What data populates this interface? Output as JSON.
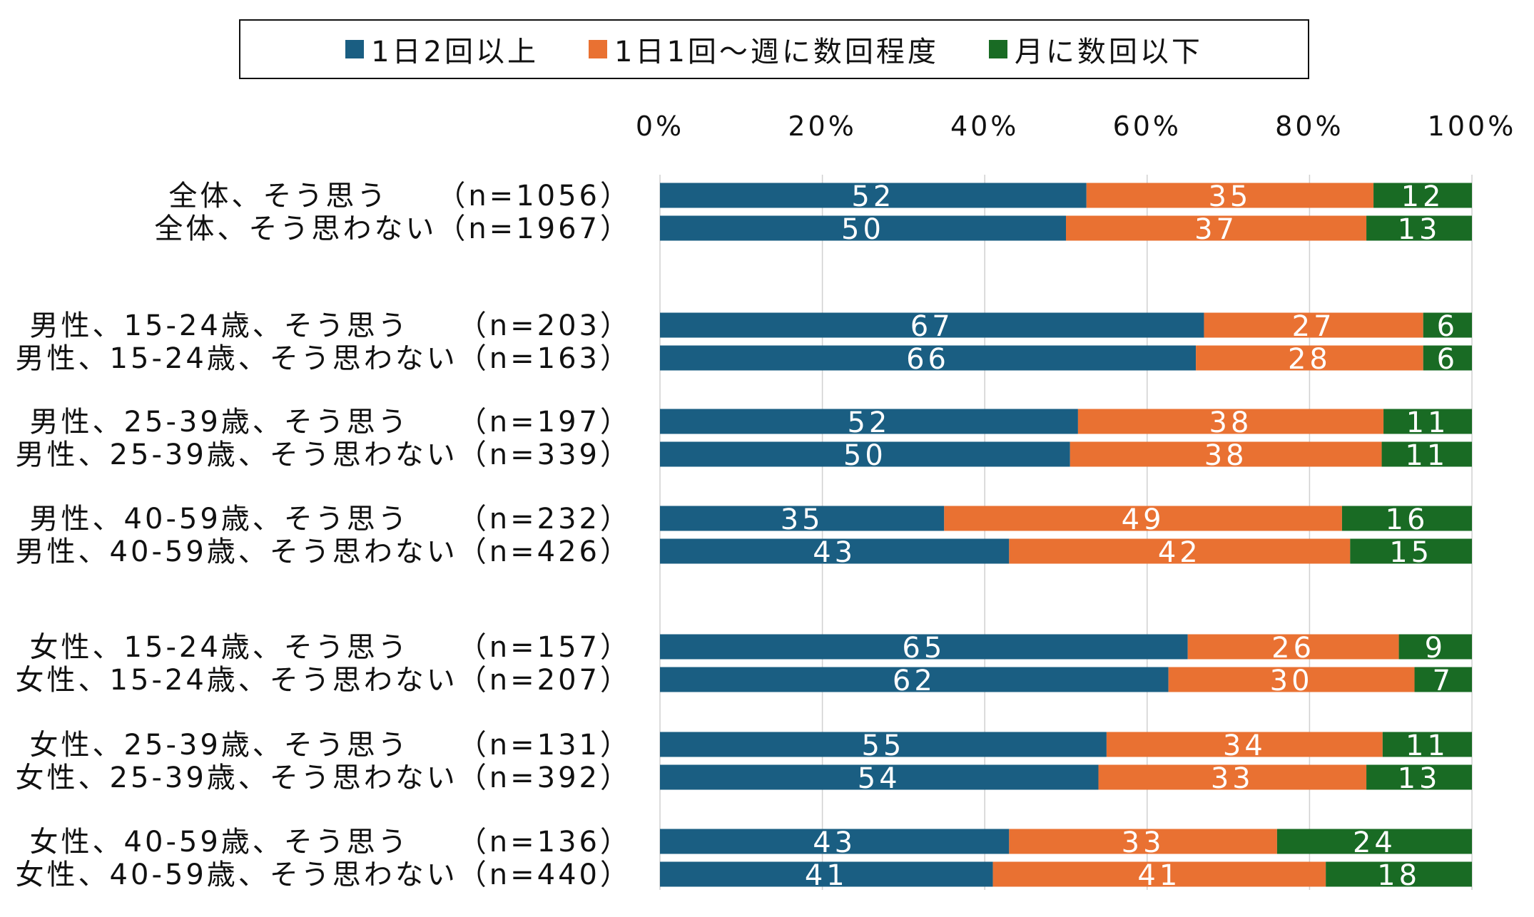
{
  "chart_data": {
    "type": "bar",
    "orientation": "horizontal",
    "stacked": true,
    "title": "",
    "xlabel": "",
    "ylabel": "",
    "xlim": [
      0,
      100
    ],
    "x_ticks": [
      "0%",
      "20%",
      "40%",
      "60%",
      "80%",
      "100%"
    ],
    "grid": true,
    "legend_position": "top",
    "categories": [
      "全体、そう思う　　（n=1056）",
      "全体、そう思わない（n=1967）",
      "男性、15-24歳、そう思う　　（n=203）",
      "男性、15-24歳、そう思わない（n=163）",
      "男性、25-39歳、そう思う　　（n=197）",
      "男性、25-39歳、そう思わない（n=339）",
      "男性、40-59歳、そう思う　　（n=232）",
      "男性、40-59歳、そう思わない（n=426）",
      "女性、15-24歳、そう思う　　（n=157）",
      "女性、15-24歳、そう思わない（n=207）",
      "女性、25-39歳、そう思う　　（n=131）",
      "女性、25-39歳、そう思わない（n=392）",
      "女性、40-59歳、そう思う　　（n=136）",
      "女性、40-59歳、そう思わない（n=440）"
    ],
    "series": [
      {
        "name": "1日2回以上",
        "color": "#1a5e82",
        "values": [
          52,
          50,
          67,
          66,
          52,
          50,
          35,
          43,
          65,
          62,
          55,
          54,
          43,
          41
        ]
      },
      {
        "name": "1日1回～週に数回程度",
        "color": "#e97132",
        "values": [
          35,
          37,
          27,
          28,
          38,
          38,
          49,
          42,
          26,
          30,
          34,
          33,
          33,
          41
        ]
      },
      {
        "name": "月に数回以下",
        "color": "#196b24",
        "values": [
          12,
          13,
          6,
          6,
          11,
          11,
          16,
          15,
          9,
          7,
          11,
          13,
          24,
          18
        ]
      }
    ]
  }
}
